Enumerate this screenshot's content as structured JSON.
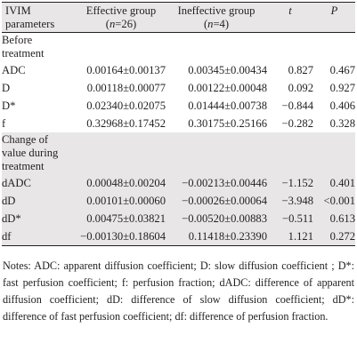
{
  "header": {
    "col1": "IVIM parameters",
    "col2_pre": "Effective group (",
    "col2_n": "n",
    "col2_post": "=26)",
    "col3_pre": "Ineffective group (",
    "col3_n": "n",
    "col3_post": "=4)",
    "col4": "t",
    "col5": "P"
  },
  "sections": [
    {
      "label": "Before treatment",
      "rows": [
        {
          "param": "ADC",
          "effective": "0.00164±0.00137",
          "ineffective": "0.00345±0.00434",
          "t": "0.827",
          "p": "0.467"
        },
        {
          "param": "D",
          "effective": "0.00118±0.00077",
          "ineffective": "0.00122±0.00048",
          "t": "0.092",
          "p": "0.927"
        },
        {
          "param": "D*",
          "effective": "0.02340±0.02075",
          "ineffective": "0.01444±0.00738",
          "t": "−0.844",
          "p": "0.406"
        },
        {
          "param": "f",
          "effective": "0.32968±0.17452",
          "ineffective": "0.30175±0.25166",
          "t": "−0.282",
          "p": "0.328"
        }
      ]
    },
    {
      "label": "Change of value during treatment",
      "rows": [
        {
          "param": "dADC",
          "effective": "0.00048±0.00204",
          "ineffective": "−0.00213±0.00446",
          "t": "−1.152",
          "p": "0.401"
        },
        {
          "param": "dD",
          "effective": "0.00101±0.00060",
          "ineffective": "−0.00026±0.00064",
          "t": "−3.948",
          "p": "<0.001"
        },
        {
          "param": "dD*",
          "effective": "0.00475±0.03821",
          "ineffective": "−0.00520±0.00883",
          "t": "−0.511",
          "p": "0.613"
        },
        {
          "param": "df",
          "effective": "−0.00130±0.18604",
          "ineffective": "0.11418±0.23390",
          "t": "1.121",
          "p": "0.272"
        }
      ]
    }
  ],
  "notes": "Notes: ADC: apparent diffusion coefficient; D: slow diffusion coefficient ; D*: fast perfusion coefficient; f: perfusion fraction; dADC: difference of apparent diffusion coefficient; dD: difference of slow diffusion coefficient; dD*: difference of fast perfusion coefficient; df: difference of perfusion fraction."
}
